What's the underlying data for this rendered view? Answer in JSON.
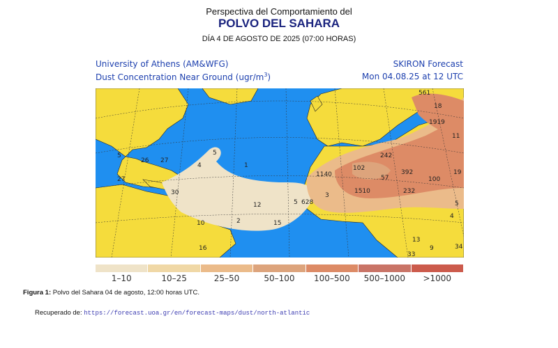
{
  "header": {
    "line1": "Perspectiva del Comportamiento del",
    "title": "POLVO DEL SAHARA",
    "date": "DÍA 4 DE AGOSTO DE 2025 (07:00 HORAS)"
  },
  "map": {
    "source": "University of Athens (AM&WFG)",
    "variable": "Dust Concentration Near Ground (ugr/m",
    "unit_sup": "3",
    "unit_close": ")",
    "model": "SKIRON Forecast",
    "valid": "Mon 04.08.25 at 12 UTC",
    "colors": {
      "ocean": "#1f8ff0",
      "land": "#f5dc3c"
    },
    "contour_labels": [
      "561",
      "18",
      "1919",
      "11",
      "242",
      "102",
      "392",
      "57",
      "100",
      "19",
      "1140",
      "1510",
      "232",
      "3",
      "628",
      "5",
      "12",
      "15",
      "2",
      "10",
      "30",
      "1",
      "4",
      "5",
      "5",
      "26",
      "27",
      "27",
      "16",
      "13",
      "9",
      "5",
      "4",
      "34",
      "33"
    ]
  },
  "legend": [
    {
      "label": "1–10",
      "color": "#efe3c8"
    },
    {
      "label": "10–25",
      "color": "#f0d8a6"
    },
    {
      "label": "25–50",
      "color": "#ebbb8a"
    },
    {
      "label": "50–100",
      "color": "#dda47c"
    },
    {
      "label": "100–500",
      "color": "#dd8b66"
    },
    {
      "label": "500–1000",
      "color": "#c97467"
    },
    {
      "label": ">1000",
      "color": "#cc5b4c"
    }
  ],
  "caption": {
    "label": "Figura 1:",
    "text": " Polvo del Sahara 04 de agosto, 12:00 horas UTC."
  },
  "retrieved": {
    "label": "Recuperado de: ",
    "url": "https://forecast.uoa.gr/en/forecast-maps/dust/north-atlantic"
  }
}
